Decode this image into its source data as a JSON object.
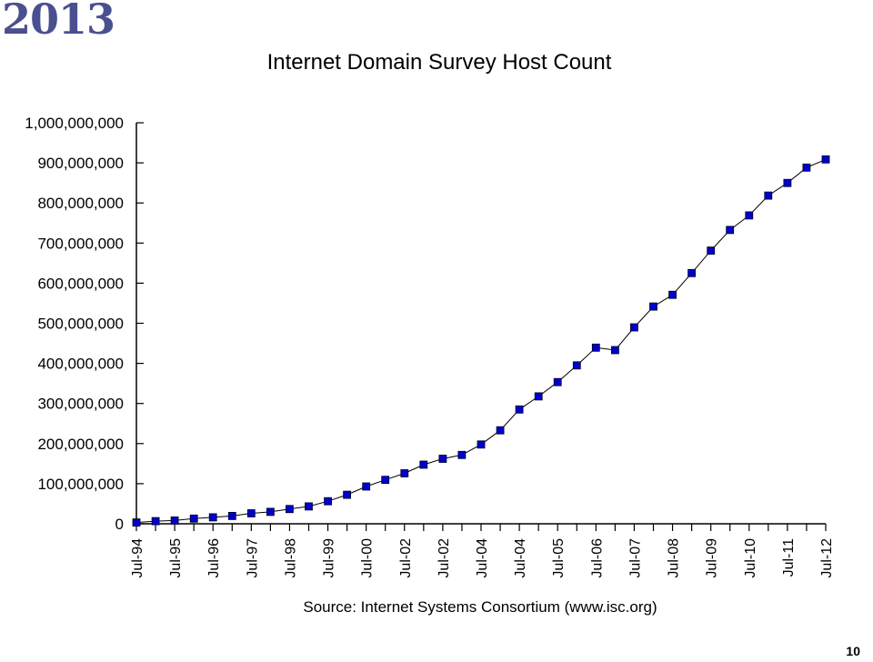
{
  "slide": {
    "year": "2013",
    "page_number": "10"
  },
  "chart_data": {
    "type": "line",
    "title": "Internet Domain Survey Host Count",
    "source": "Source: Internet Systems Consortium (www.isc.org)",
    "ylim": [
      0,
      1000000000
    ],
    "y_ticks": [
      {
        "value": 0,
        "label": "0"
      },
      {
        "value": 100000000,
        "label": "100,000,000"
      },
      {
        "value": 200000000,
        "label": "200,000,000"
      },
      {
        "value": 300000000,
        "label": "300,000,000"
      },
      {
        "value": 400000000,
        "label": "400,000,000"
      },
      {
        "value": 500000000,
        "label": "500,000,000"
      },
      {
        "value": 600000000,
        "label": "600,000,000"
      },
      {
        "value": 700000000,
        "label": "700,000,000"
      },
      {
        "value": 800000000,
        "label": "800,000,000"
      },
      {
        "value": 900000000,
        "label": "900,000,000"
      },
      {
        "value": 1000000000,
        "label": "1,000,000,000"
      }
    ],
    "x_labels": [
      "Jul-94",
      "Jul-95",
      "Jul-96",
      "Jul-97",
      "Jul-98",
      "Jul-99",
      "Jul-00",
      "Jul-02",
      "Jul-02",
      "Jul-04",
      "Jul-04",
      "Jul-05",
      "Jul-06",
      "Jul-07",
      "Jul-08",
      "Jul-09",
      "Jul-10",
      "Jul-11",
      "Jul-12"
    ],
    "series": [
      {
        "color": "#0000cc",
        "values": [
          3200000,
          6600000,
          8200000,
          12900000,
          16100000,
          19500000,
          26000000,
          29700000,
          36700000,
          43200000,
          56200000,
          72400000,
          93000000,
          109600000,
          125900000,
          147300000,
          162100000,
          171600000,
          197800000,
          233000000,
          285100000,
          317600000,
          353300000,
          394900000,
          439300000,
          433200000,
          489800000,
          541700000,
          570900000,
          625200000,
          681100000,
          732700000,
          768900000,
          818400000,
          849900000,
          888200000,
          908600000
        ]
      }
    ]
  }
}
